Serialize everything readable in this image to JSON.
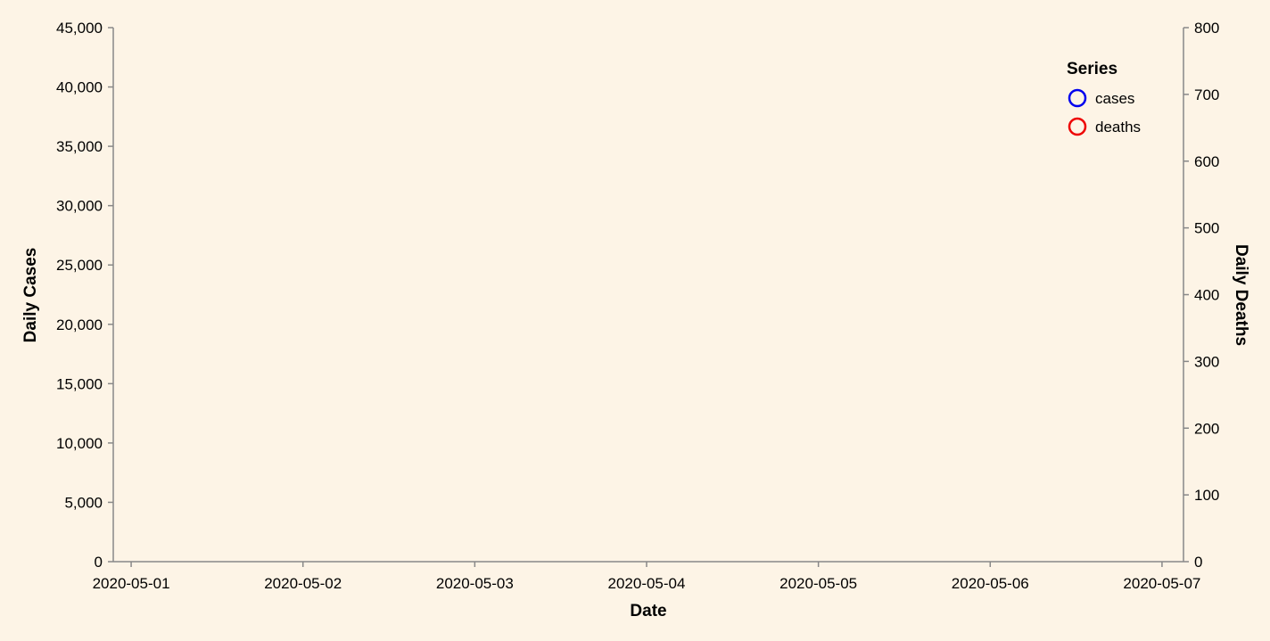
{
  "colors": {
    "background": "#fdf4e6",
    "axis": "#888888",
    "cases": "#0000ee",
    "deaths": "#ee0000"
  },
  "chart_data": {
    "type": "line",
    "title": "",
    "xlabel": "Date",
    "ylabel": "Daily Cases",
    "ylabel_right": "Daily Deaths",
    "x_ticks": [
      "2020-05-01",
      "2020-05-02",
      "2020-05-03",
      "2020-05-04",
      "2020-05-05",
      "2020-05-06",
      "2020-05-07"
    ],
    "xlim": [
      "2020-04-30T21:30",
      "2020-05-07T03:00"
    ],
    "ylim": [
      0,
      45000
    ],
    "y_ticks": [
      0,
      5000,
      10000,
      15000,
      20000,
      25000,
      30000,
      35000,
      40000,
      45000
    ],
    "y_tick_labels": [
      "0",
      "5,000",
      "10,000",
      "15,000",
      "20,000",
      "25,000",
      "30,000",
      "35,000",
      "40,000",
      "45,000"
    ],
    "ylim_right": [
      0,
      800
    ],
    "y_ticks_right": [
      0,
      100,
      200,
      300,
      400,
      500,
      600,
      700,
      800
    ],
    "y_tick_labels_right": [
      "0",
      "100",
      "200",
      "300",
      "400",
      "500",
      "600",
      "700",
      "800"
    ],
    "grid": false,
    "legend": {
      "title": "Series",
      "placement": "top-right",
      "entries": [
        {
          "label": "cases",
          "color": "#0000ee",
          "symbol": "circle"
        },
        {
          "label": "deaths",
          "color": "#ee0000",
          "symbol": "circle"
        }
      ]
    },
    "series": [
      {
        "name": "cases",
        "axis": "left",
        "x": [],
        "values": []
      },
      {
        "name": "deaths",
        "axis": "right",
        "x": [],
        "values": []
      }
    ]
  }
}
